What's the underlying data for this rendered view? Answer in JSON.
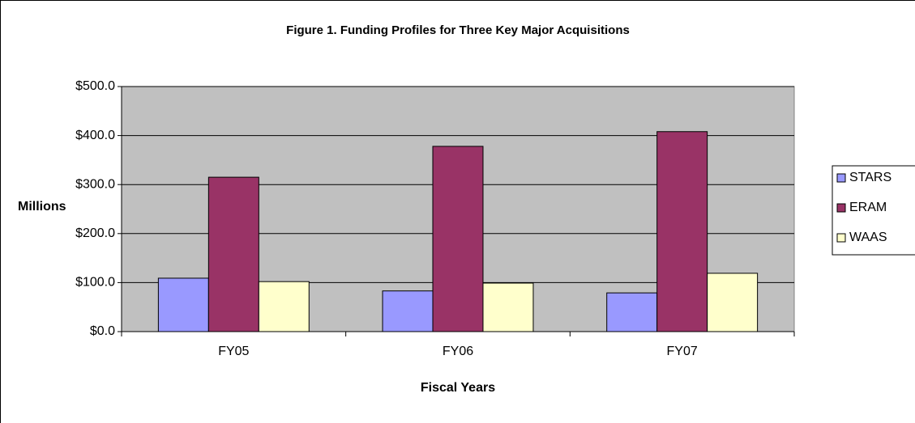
{
  "chart_data": {
    "type": "bar",
    "title": "Figure 1.  Funding Profiles for Three Key Major Acquisitions",
    "y_label": "Millions",
    "x_label": "Fiscal Years",
    "categories": [
      "FY05",
      "FY06",
      "FY07"
    ],
    "series": [
      {
        "name": "STARS",
        "color": "#9999ff",
        "values": [
          109,
          83,
          79
        ]
      },
      {
        "name": "ERAM",
        "color": "#993366",
        "values": [
          315,
          378,
          408
        ]
      },
      {
        "name": "WAAS",
        "color": "#ffffcc",
        "values": [
          102,
          99,
          119
        ]
      }
    ],
    "ylim": [
      0,
      500
    ],
    "yticks": [
      {
        "value": 0,
        "label": "$0.0"
      },
      {
        "value": 100,
        "label": "$100.0"
      },
      {
        "value": 200,
        "label": "$200.0"
      },
      {
        "value": 300,
        "label": "$300.0"
      },
      {
        "value": 400,
        "label": "$400.0"
      },
      {
        "value": 500,
        "label": "$500.0"
      }
    ],
    "grid": true,
    "legend": "right"
  }
}
